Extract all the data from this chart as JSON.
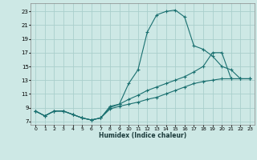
{
  "xlabel": "Humidex (Indice chaleur)",
  "bg_color": "#cde8e5",
  "grid_color": "#aacfcc",
  "line_color": "#1a7070",
  "xlim": [
    -0.5,
    23.5
  ],
  "ylim": [
    6.5,
    24.2
  ],
  "xticks": [
    0,
    1,
    2,
    3,
    4,
    5,
    6,
    7,
    8,
    9,
    10,
    11,
    12,
    13,
    14,
    15,
    16,
    17,
    18,
    19,
    20,
    21,
    22,
    23
  ],
  "yticks": [
    7,
    9,
    11,
    13,
    15,
    17,
    19,
    21,
    23
  ],
  "line1_x": [
    0,
    1,
    2,
    3,
    4,
    5,
    6,
    7,
    8,
    9,
    10,
    11,
    12,
    13,
    14,
    15,
    16,
    17,
    18,
    19,
    20,
    21,
    22,
    23
  ],
  "line1_y": [
    8.5,
    7.8,
    8.5,
    8.5,
    8.0,
    7.5,
    7.2,
    7.5,
    9.2,
    9.5,
    12.5,
    14.5,
    20.0,
    22.5,
    23.0,
    23.2,
    22.2,
    18.0,
    17.5,
    16.5,
    15.0,
    14.5,
    13.2,
    13.2
  ],
  "line2_x": [
    0,
    1,
    2,
    3,
    4,
    5,
    6,
    7,
    8,
    9,
    10,
    11,
    12,
    13,
    14,
    15,
    16,
    17,
    18,
    19,
    20,
    21,
    22,
    23
  ],
  "line2_y": [
    8.5,
    7.8,
    8.5,
    8.5,
    8.0,
    7.5,
    7.2,
    7.5,
    9.0,
    9.5,
    10.2,
    10.8,
    11.5,
    12.0,
    12.5,
    13.0,
    13.5,
    14.2,
    15.0,
    17.0,
    17.0,
    13.2,
    13.2,
    13.2
  ],
  "line3_x": [
    0,
    1,
    2,
    3,
    4,
    5,
    6,
    7,
    8,
    9,
    10,
    11,
    12,
    13,
    14,
    15,
    16,
    17,
    18,
    19,
    20,
    21,
    22,
    23
  ],
  "line3_y": [
    8.5,
    7.8,
    8.5,
    8.5,
    8.0,
    7.5,
    7.2,
    7.5,
    8.8,
    9.2,
    9.5,
    9.8,
    10.2,
    10.5,
    11.0,
    11.5,
    12.0,
    12.5,
    12.8,
    13.0,
    13.2,
    13.2,
    13.2,
    13.2
  ]
}
